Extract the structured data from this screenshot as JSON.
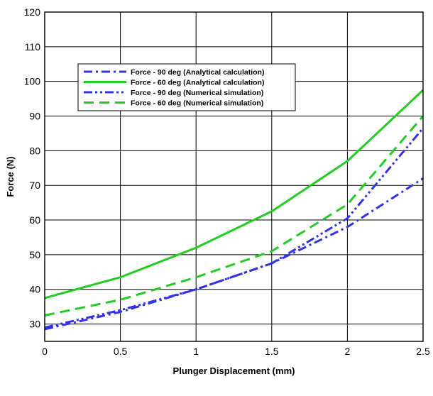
{
  "chart_data": {
    "type": "line",
    "title": "",
    "xlabel": "Plunger Displacement (mm)",
    "ylabel": "Force (N)",
    "xlim": [
      0,
      2.5
    ],
    "ylim": [
      25,
      120
    ],
    "xticks": [
      0,
      0.5,
      1,
      1.5,
      2,
      2.5
    ],
    "xtick_labels": [
      "0",
      "0.5",
      "1",
      "1.5",
      "2",
      "2.5"
    ],
    "yticks": [
      30,
      40,
      50,
      60,
      70,
      80,
      90,
      100,
      110,
      120
    ],
    "ytick_labels": [
      "30",
      "40",
      "50",
      "60",
      "70",
      "80",
      "90",
      "100",
      "110",
      "120"
    ],
    "grid": true,
    "legend_position": "top-left",
    "series": [
      {
        "name": "Force - 90 deg (Analytical calculation)",
        "color": "#3333e6",
        "dash": "dash-dot",
        "x": [
          0,
          0.5,
          1,
          1.5,
          2,
          2.5
        ],
        "y": [
          28.5,
          33.5,
          40,
          47.5,
          58,
          72
        ]
      },
      {
        "name": "Force - 60 deg (Analytical calculation)",
        "color": "#22cc22",
        "dash": "solid",
        "x": [
          0,
          0.5,
          1,
          1.5,
          2,
          2.5
        ],
        "y": [
          37.5,
          43.5,
          52,
          62.5,
          77,
          97.5
        ]
      },
      {
        "name": "Force - 90 deg (Numerical simulation)",
        "color": "#3333e6",
        "dash": "dash-dot-dot",
        "x": [
          0,
          0.5,
          1,
          1.5,
          2,
          2.5
        ],
        "y": [
          29,
          34,
          40,
          47.5,
          60.5,
          86.5
        ]
      },
      {
        "name": "Force - 60 deg (Numerical simulation)",
        "color": "#22cc22",
        "dash": "dashed",
        "x": [
          0,
          0.5,
          1,
          1.5,
          2,
          2.5
        ],
        "y": [
          32.5,
          37,
          43.5,
          51,
          64.5,
          90
        ]
      }
    ]
  }
}
